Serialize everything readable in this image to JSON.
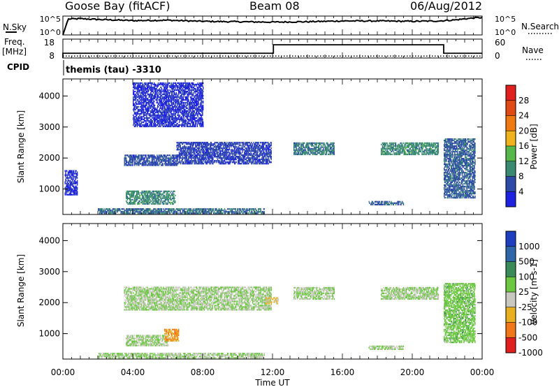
{
  "header": {
    "station": "Goose Bay (fitACF)",
    "beam": "Beam 08",
    "date": "06/Aug/2012"
  },
  "noise_panel": {
    "left_label": "N.Sky",
    "left_ticks": [
      "10^5",
      "10^0"
    ],
    "right_label": "N.Search",
    "right_ticks": [
      "10^5",
      "10^0"
    ]
  },
  "freq_panel": {
    "left_label_1": "Freq.",
    "left_label_2": "[MHz]",
    "left_ticks": [
      "18",
      "8"
    ],
    "right_label": "Nave",
    "right_ticks": [
      "60",
      "0"
    ]
  },
  "cpid": {
    "label": "CPID",
    "text": "themis (tau) -3310"
  },
  "power_panel": {
    "ylabel": "Slant Range [km]",
    "yticks": [
      "1000",
      "2000",
      "3000",
      "4000"
    ],
    "colorbar_label": "Power [dB]",
    "colorbar_ticks": [
      "4",
      "8",
      "12",
      "16",
      "20",
      "24",
      "28"
    ],
    "colors": [
      "#1e22e0",
      "#2c4aa6",
      "#3a8a72",
      "#56b84a",
      "#f0b21e",
      "#f07a12",
      "#e04a14",
      "#e0201e"
    ]
  },
  "velocity_panel": {
    "ylabel": "Slant Range [km]",
    "yticks": [
      "1000",
      "2000",
      "3000",
      "4000"
    ],
    "colorbar_label": "Velocity [m s-1]",
    "colorbar_ticks": [
      "1000",
      "500",
      "100",
      "25",
      "-25",
      "-100",
      "-500",
      "-1000"
    ],
    "colors": [
      "#1e3ec0",
      "#2e66a8",
      "#3a8a5a",
      "#6cc840",
      "#c8c8c0",
      "#e8b020",
      "#f07818",
      "#e0201e"
    ]
  },
  "x_axis": {
    "ticks": [
      "00:00",
      "04:00",
      "08:00",
      "12:00",
      "16:00",
      "20:00",
      "00:00"
    ],
    "label": "Time UT"
  },
  "chart_data": [
    {
      "type": "line",
      "name": "noise",
      "x_hours": [
        0,
        0.3,
        1,
        2,
        4,
        6,
        8,
        10,
        12,
        14,
        16,
        18,
        20,
        21.5,
        22.5,
        23.5,
        24
      ],
      "noise_sky_log": [
        0,
        4.2,
        4.3,
        4.1,
        3.8,
        3.9,
        3.6,
        3.5,
        3.4,
        3.5,
        3.7,
        3.7,
        3.6,
        3.7,
        4.0,
        4.5,
        4.6
      ],
      "ylim": [
        0,
        5
      ]
    },
    {
      "type": "line",
      "name": "frequency",
      "x_hours": [
        0,
        0.3,
        12.05,
        21.8,
        24
      ],
      "freq_mhz": [
        10.5,
        10.5,
        15,
        10.5,
        10.5
      ],
      "nave": [
        6,
        6,
        6,
        6,
        6
      ],
      "ylim_freq": [
        8,
        18
      ],
      "ylim_nave": [
        0,
        60
      ]
    },
    {
      "type": "heatmap",
      "name": "power",
      "xlim_hours": [
        0,
        24
      ],
      "ylim_km": [
        180,
        4550
      ],
      "scale_db": [
        0,
        32
      ],
      "regions": [
        {
          "t0": 3.5,
          "t1": 6.5,
          "r0": 1750,
          "r1": 2100,
          "val": 6
        },
        {
          "t0": 6.5,
          "t1": 11.9,
          "r0": 1800,
          "r1": 2500,
          "val": 5
        },
        {
          "t0": 3.6,
          "t1": 6.4,
          "r0": 500,
          "r1": 950,
          "val": 10
        },
        {
          "t0": 2.0,
          "t1": 11.5,
          "r0": 200,
          "r1": 380,
          "val": 8
        },
        {
          "t0": 13.2,
          "t1": 15.5,
          "r0": 2100,
          "r1": 2500,
          "val": 9
        },
        {
          "t0": 18.2,
          "t1": 21.5,
          "r0": 2100,
          "r1": 2500,
          "val": 10
        },
        {
          "t0": 17.5,
          "t1": 19.5,
          "r0": 480,
          "r1": 600,
          "val": 7
        },
        {
          "t0": 21.8,
          "t1": 23.6,
          "r0": 700,
          "r1": 2600,
          "val": 7
        },
        {
          "t0": 4.0,
          "t1": 8.0,
          "r0": 3000,
          "r1": 4400,
          "val": 3
        },
        {
          "t0": 0.1,
          "t1": 0.8,
          "r0": 800,
          "r1": 1600,
          "val": 3
        }
      ]
    },
    {
      "type": "heatmap",
      "name": "velocity",
      "xlim_hours": [
        0,
        24
      ],
      "ylim_km": [
        180,
        4550
      ],
      "scale_ms": [
        -1200,
        1200
      ],
      "regions": [
        {
          "t0": 3.5,
          "t1": 11.9,
          "r0": 1750,
          "r1": 2500,
          "val": 0
        },
        {
          "t0": 3.6,
          "t1": 6.0,
          "r0": 600,
          "r1": 950,
          "val": 0
        },
        {
          "t0": 5.8,
          "t1": 6.6,
          "r0": 750,
          "r1": 1150,
          "val": -600
        },
        {
          "t0": 2.0,
          "t1": 11.5,
          "r0": 200,
          "r1": 380,
          "val": 0
        },
        {
          "t0": 13.2,
          "t1": 15.5,
          "r0": 2100,
          "r1": 2500,
          "val": 0
        },
        {
          "t0": 18.2,
          "t1": 21.5,
          "r0": 2100,
          "r1": 2500,
          "val": 0
        },
        {
          "t0": 17.5,
          "t1": 19.5,
          "r0": 480,
          "r1": 600,
          "val": 0
        },
        {
          "t0": 21.8,
          "t1": 23.6,
          "r0": 700,
          "r1": 2600,
          "val": 150
        },
        {
          "t0": 11.6,
          "t1": 12.3,
          "r0": 1950,
          "r1": 2150,
          "val": -300
        }
      ]
    }
  ]
}
